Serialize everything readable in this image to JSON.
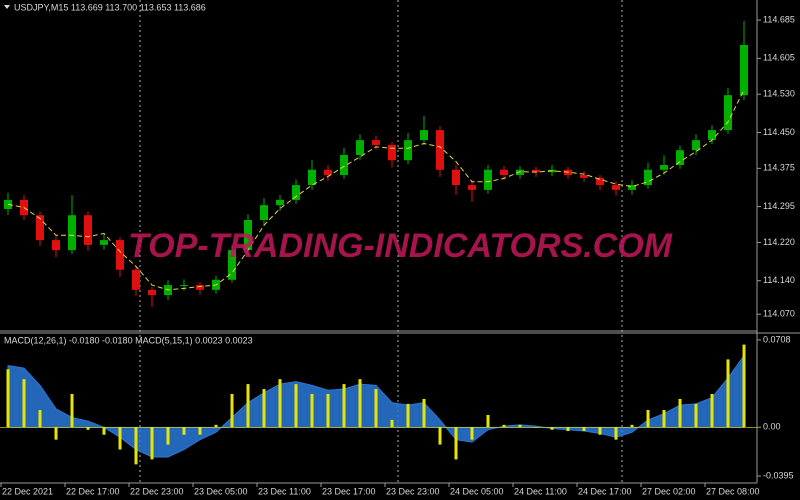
{
  "chart_data": [
    {
      "type": "candlestick",
      "title": "USDJPY,M15  113.669 113.700 113.653 113.686",
      "watermark": "TOP-TRADING-INDICATORS.COM",
      "categories": [
        "22 Dec 2021",
        null,
        null,
        null,
        "22 Dec 17:00",
        null,
        null,
        null,
        "22 Dec 23:00",
        null,
        null,
        null,
        "23 Dec 05:00",
        null,
        null,
        null,
        "23 Dec 11:00",
        null,
        null,
        null,
        "23 Dec 17:00",
        null,
        null,
        null,
        "23 Dec 23:00",
        null,
        null,
        null,
        "24 Dec 05:00",
        null,
        null,
        null,
        "24 Dec 11:00",
        null,
        null,
        null,
        "24 Dec 17:00",
        null,
        null,
        null,
        "27 Dec 02:00",
        null,
        null,
        null,
        "27 Dec 08:00",
        null,
        null
      ],
      "open": [
        114.29,
        114.309,
        114.277,
        114.225,
        114.204,
        114.277,
        114.215,
        114.225,
        114.163,
        114.121,
        114.11,
        114.131,
        114.131,
        114.121,
        114.142,
        114.204,
        114.267,
        114.298,
        114.309,
        114.34,
        114.372,
        114.361,
        114.403,
        114.434,
        114.424,
        114.392,
        114.434,
        114.455,
        114.372,
        114.34,
        114.33,
        114.372,
        114.361,
        114.372,
        114.367,
        114.372,
        114.361,
        114.355,
        114.34,
        114.33,
        114.34,
        114.372,
        114.382,
        114.413,
        114.434,
        114.455,
        114.528
      ],
      "high": [
        114.324,
        114.319,
        114.285,
        114.235,
        114.319,
        114.285,
        114.237,
        114.231,
        114.171,
        114.127,
        114.141,
        114.143,
        114.137,
        114.15,
        114.214,
        114.279,
        114.313,
        114.319,
        114.352,
        114.392,
        114.382,
        114.418,
        114.446,
        114.444,
        114.43,
        114.449,
        114.485,
        114.463,
        114.382,
        114.35,
        114.382,
        114.38,
        114.38,
        114.378,
        114.382,
        114.378,
        114.369,
        114.361,
        114.348,
        114.35,
        114.387,
        114.402,
        114.423,
        114.446,
        114.465,
        114.543,
        114.683
      ],
      "low": [
        114.278,
        114.267,
        114.213,
        114.189,
        114.196,
        114.203,
        114.205,
        114.148,
        114.109,
        114.085,
        114.1,
        114.119,
        114.111,
        114.113,
        114.136,
        114.194,
        114.255,
        114.286,
        114.301,
        114.33,
        114.349,
        114.353,
        114.393,
        114.414,
        114.377,
        114.384,
        114.424,
        114.357,
        114.32,
        114.305,
        114.322,
        114.351,
        114.353,
        114.357,
        114.359,
        114.353,
        114.347,
        114.33,
        114.318,
        114.32,
        114.332,
        114.362,
        114.374,
        114.403,
        114.426,
        114.447,
        114.518
      ],
      "close": [
        114.309,
        114.277,
        114.225,
        114.204,
        114.277,
        114.215,
        114.225,
        114.163,
        114.121,
        114.11,
        114.131,
        114.131,
        114.121,
        114.142,
        114.204,
        114.267,
        114.298,
        114.309,
        114.34,
        114.372,
        114.361,
        114.403,
        114.434,
        114.424,
        114.392,
        114.434,
        114.455,
        114.372,
        114.34,
        114.33,
        114.372,
        114.361,
        114.372,
        114.367,
        114.372,
        114.361,
        114.355,
        114.34,
        114.33,
        114.34,
        114.372,
        114.382,
        114.413,
        114.434,
        114.455,
        114.528,
        114.633
      ],
      "up_color": "#00b000",
      "down_color": "#e01010",
      "ma": {
        "color": "#e8d44a",
        "values": [
          114.3,
          114.293,
          114.27,
          114.235,
          114.235,
          114.232,
          114.239,
          114.201,
          114.17,
          114.131,
          114.121,
          114.124,
          114.128,
          114.131,
          114.156,
          114.204,
          114.256,
          114.291,
          114.316,
          114.34,
          114.358,
          114.379,
          114.399,
          114.42,
          114.417,
          114.417,
          114.427,
          114.42,
          114.389,
          114.347,
          114.347,
          114.354,
          114.368,
          114.367,
          114.37,
          114.367,
          114.363,
          114.352,
          114.342,
          114.337,
          114.347,
          114.365,
          114.389,
          114.41,
          114.434,
          114.472,
          114.539
        ]
      },
      "ylim": [
        114.037,
        114.727
      ],
      "yticks": [
        114.685,
        114.605,
        {
          "value": 114.53,
          "label": "114.530"
        },
        {
          "value": 114.45,
          "label": "114.450"
        },
        114.375,
        114.295,
        {
          "value": 114.22,
          "label": "114.220"
        },
        {
          "value": 114.14,
          "label": "114.140"
        },
        {
          "value": 114.07,
          "label": "114.070"
        }
      ]
    },
    {
      "type": "macd",
      "title": "MACD(12,26,1) -0.0180 -0.0180  MACD(5,15,1) 0.0023 0.0023",
      "histogram": {
        "color": "#e6e600",
        "values": [
          0.047,
          0.039,
          0.014,
          -0.01,
          0.027,
          -0.002,
          -0.006,
          -0.018,
          -0.03,
          -0.026,
          -0.014,
          -0.006,
          -0.006,
          0.002,
          0.027,
          0.035,
          0.031,
          0.039,
          0.035,
          0.027,
          0.027,
          0.035,
          0.039,
          0.031,
          0.006,
          0.019,
          0.023,
          -0.014,
          -0.026,
          -0.01,
          0.01,
          0.002,
          0.002,
          0.0,
          -0.002,
          -0.003,
          -0.003,
          -0.006,
          -0.01,
          0.002,
          0.014,
          0.014,
          0.023,
          0.019,
          0.027,
          0.055,
          0.067
        ]
      },
      "signal": {
        "color": "#2a78d8",
        "values": [
          0.05,
          0.048,
          0.034,
          0.015,
          0.008,
          0.005,
          0.0,
          -0.008,
          -0.018,
          -0.024,
          -0.024,
          -0.018,
          -0.01,
          -0.004,
          0.008,
          0.02,
          0.028,
          0.035,
          0.037,
          0.034,
          0.03,
          0.031,
          0.035,
          0.034,
          0.02,
          0.018,
          0.02,
          0.006,
          -0.01,
          -0.012,
          -0.002,
          0.001,
          0.002,
          0.001,
          -0.001,
          -0.002,
          -0.003,
          -0.005,
          -0.008,
          -0.004,
          0.006,
          0.011,
          0.018,
          0.019,
          0.024,
          0.04,
          0.058
        ]
      },
      "ylim": [
        -0.0443,
        0.0764
      ],
      "yticks": [
        0.0708,
        {
          "value": 0,
          "label": "0.00"
        },
        -0.0395
      ]
    }
  ]
}
